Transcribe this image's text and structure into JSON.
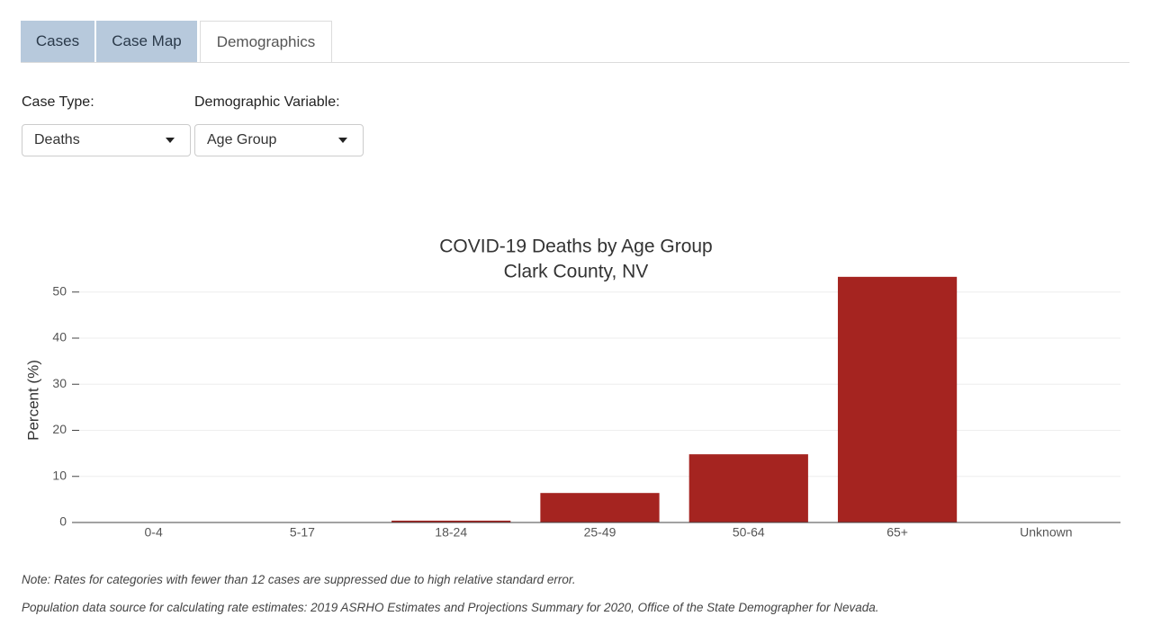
{
  "tabs": [
    "Cases",
    "Case Map",
    "Demographics"
  ],
  "controls": [
    {
      "label": "Case Type:",
      "value": "Deaths"
    },
    {
      "label": "Demographic Variable:",
      "value": "Age Group"
    }
  ],
  "chart_data": {
    "type": "bar",
    "title": "COVID-19 Deaths by Age Group",
    "subtitle": "Clark County, NV",
    "y_label": "Percent (%)",
    "categories": [
      "0-4",
      "5-17",
      "18-24",
      "25-49",
      "50-64",
      "65+",
      "Unknown"
    ],
    "values": [
      null,
      null,
      0.4,
      6.4,
      14.8,
      53.3,
      null
    ],
    "color": "#a52420",
    "ylim": [
      0,
      56
    ],
    "yticks": [
      0,
      10,
      20,
      30,
      40,
      50
    ],
    "grid": true
  },
  "notes": [
    "Note: Rates for categories with fewer than 12 cases are suppressed due to high relative standard error.",
    "Population data source for calculating rate estimates: 2019 ASRHO Estimates and Projections Summary for 2020, Office of the State Demographer for Nevada."
  ]
}
